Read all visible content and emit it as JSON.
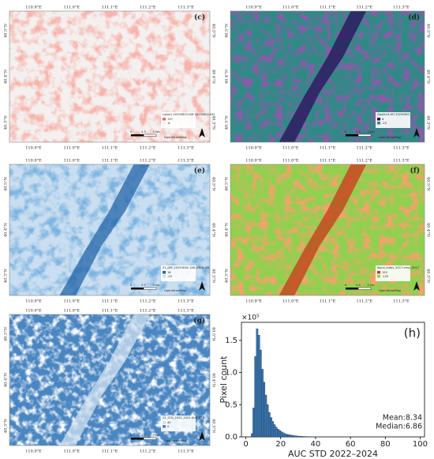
{
  "map_axes": {
    "lon_labels": [
      "110.9°E",
      "111.0°E",
      "111.1°E",
      "111.2°E",
      "111.3°E"
    ],
    "lat_labels": [
      "40.5°N",
      "40.4°N",
      "40.3°N"
    ]
  },
  "panels": [
    {
      "label": "(c)",
      "legend_title": "Luton1-20250822-Diff 20250802-HH",
      "legend_values": [
        "137",
        "-8"
      ],
      "scale": [
        "0",
        "2.5",
        "5 km"
      ],
      "basemap": "OpenStreetMap"
    },
    {
      "label": "(d)",
      "legend_title": "Gaofen3-HH 20250822",
      "legend_values": [
        "6",
        "-25"
      ],
      "scale": [
        "0",
        "2.5",
        "5 km"
      ],
      "basemap": "OpenStreetMap"
    },
    {
      "label": "(e)",
      "legend_title": "S1_Diff_20250816 -Diff_0816_VV",
      "legend_values": [
        "18",
        "-20"
      ],
      "scale": [
        "0",
        "2.5",
        "5 km"
      ],
      "basemap": "OpenStreetMap"
    },
    {
      "label": "(f)",
      "legend_title": "Ikona_index_2017 error_2017",
      "legend_values": [
        "120",
        "-120"
      ],
      "scale": [
        "0",
        "2.5",
        "5 km"
      ],
      "basemap": "OpenStreetMap"
    },
    {
      "label": "(g)",
      "legend_title": "S2_STD_2022_2024 AUC_STD",
      "legend_values": [
        "45",
        "0"
      ],
      "scale": [
        "0",
        "2.5",
        "5 km"
      ],
      "basemap": "OpenStreetMap"
    }
  ],
  "chart_data": {
    "type": "histogram",
    "panel_label": "(h)",
    "xlabel": "AUC STD 2022–2024",
    "ylabel": "Pixel count",
    "y_offset_label": "×10⁵",
    "annotations": [
      "Mean:8.34",
      "Median:6.86"
    ],
    "color": "#3b78b1",
    "edgecolor": "#1a3550",
    "bins": [
      3,
      4,
      5,
      6,
      7,
      8,
      9,
      10,
      11,
      12,
      13,
      14,
      15,
      16,
      17,
      18,
      19,
      20,
      21,
      22,
      23,
      24,
      25,
      26,
      27,
      28,
      29,
      30,
      31,
      32,
      33,
      34,
      35,
      36,
      37,
      38,
      39,
      40,
      41
    ],
    "counts": [
      0.05,
      0.45,
      1.25,
      1.68,
      1.58,
      1.35,
      1.05,
      0.85,
      0.65,
      0.5,
      0.38,
      0.3,
      0.24,
      0.19,
      0.15,
      0.12,
      0.1,
      0.08,
      0.065,
      0.05,
      0.04,
      0.035,
      0.03,
      0.025,
      0.02,
      0.016,
      0.013,
      0.011,
      0.009,
      0.007,
      0.006,
      0.005,
      0.004,
      0.003,
      0.003,
      0.002,
      0.002,
      0.001
    ],
    "xlim": [
      -2.5,
      102.5
    ],
    "ylim": [
      0,
      1.78
    ],
    "xticks": [
      0,
      20,
      40,
      60,
      80,
      100
    ],
    "yticks": [
      {
        "value": 0,
        "label": "0.0"
      },
      0.5,
      {
        "value": 1,
        "label": "1.0"
      },
      1.5
    ]
  }
}
